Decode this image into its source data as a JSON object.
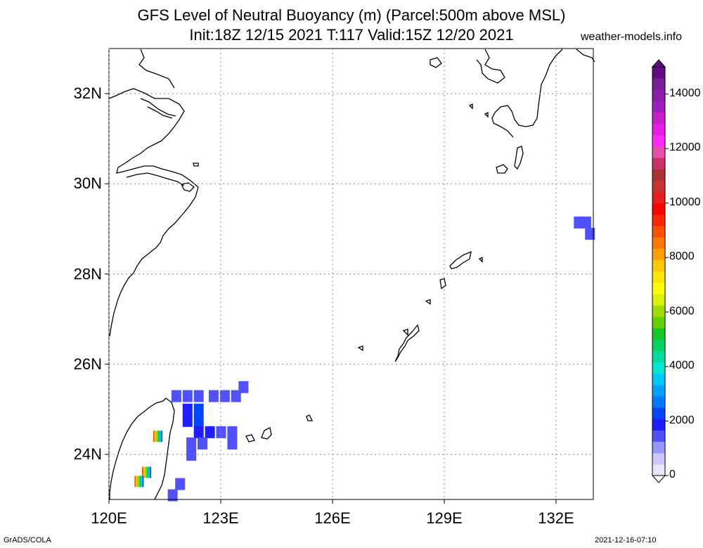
{
  "header": {
    "title_line1": "GFS Level of Neutral Buoyancy (m) (Parcel:500m above MSL)",
    "title_line2": "Init:18Z 12/15 2021 T:117 Valid:15Z 12/20 2021",
    "site": "weather-models.info"
  },
  "map": {
    "lon_range": [
      120,
      133
    ],
    "lat_range": [
      23,
      33
    ],
    "lat_labels": [
      "32N",
      "30N",
      "28N",
      "26N",
      "24N"
    ],
    "lon_labels": [
      "120E",
      "123E",
      "126E",
      "129E",
      "132E"
    ],
    "grid_style": "dotted",
    "coastline_color": "#000000",
    "field_cells": [
      {
        "lon": 121.8,
        "lat": 25.3,
        "value": 1500
      },
      {
        "lon": 122.1,
        "lat": 25.3,
        "value": 1600
      },
      {
        "lon": 122.4,
        "lat": 25.3,
        "value": 1500
      },
      {
        "lon": 122.8,
        "lat": 25.3,
        "value": 1500
      },
      {
        "lon": 123.1,
        "lat": 25.3,
        "value": 1500
      },
      {
        "lon": 123.4,
        "lat": 25.3,
        "value": 1400
      },
      {
        "lon": 123.6,
        "lat": 25.5,
        "value": 1400
      },
      {
        "lon": 122.1,
        "lat": 25.0,
        "value": 1800
      },
      {
        "lon": 122.4,
        "lat": 25.0,
        "value": 2200
      },
      {
        "lon": 122.1,
        "lat": 24.75,
        "value": 1900
      },
      {
        "lon": 122.4,
        "lat": 24.75,
        "value": 2300
      },
      {
        "lon": 122.4,
        "lat": 24.5,
        "value": 2000
      },
      {
        "lon": 122.7,
        "lat": 24.5,
        "value": 1700
      },
      {
        "lon": 123.0,
        "lat": 24.5,
        "value": 1500
      },
      {
        "lon": 123.3,
        "lat": 24.5,
        "value": 1400
      },
      {
        "lon": 122.2,
        "lat": 24.25,
        "value": 1400
      },
      {
        "lon": 122.5,
        "lat": 24.25,
        "value": 1500
      },
      {
        "lon": 123.3,
        "lat": 24.25,
        "value": 1400
      },
      {
        "lon": 122.2,
        "lat": 24.0,
        "value": 1400
      },
      {
        "lon": 121.9,
        "lat": 23.35,
        "value": 1400
      },
      {
        "lon": 121.7,
        "lat": 23.1,
        "value": 1400
      },
      {
        "lon": 132.6,
        "lat": 29.15,
        "value": 1500
      },
      {
        "lon": 132.8,
        "lat": 29.15,
        "value": 1500
      },
      {
        "lon": 132.9,
        "lat": 28.9,
        "value": 1500
      }
    ],
    "spot_cells": [
      {
        "lon": 121.3,
        "lat": 24.4
      },
      {
        "lon": 121.0,
        "lat": 23.6
      },
      {
        "lon": 120.8,
        "lat": 23.4
      }
    ]
  },
  "colorbar": {
    "min": 0,
    "max": 15000,
    "labels": [
      "14000",
      "12000",
      "10000",
      "8000",
      "6000",
      "4000",
      "2000",
      "0"
    ],
    "colors": [
      "#e6e6ff",
      "#c8c8ff",
      "#9696ff",
      "#5050ff",
      "#1e1eff",
      "#0046ff",
      "#0078ff",
      "#00a0ff",
      "#00c8ff",
      "#00e6d2",
      "#00dca0",
      "#00d264",
      "#14c828",
      "#64d200",
      "#a0dc00",
      "#dcf000",
      "#ffff00",
      "#ffe600",
      "#ffc800",
      "#ffa000",
      "#ff7800",
      "#ff5000",
      "#ff2800",
      "#ff0000",
      "#e61e1e",
      "#c83232",
      "#aa3232",
      "#c83264",
      "#e650aa",
      "#ff28ff",
      "#e61ee6",
      "#c81ec8",
      "#a01ebe",
      "#8c1eaa",
      "#781e96",
      "#640a82"
    ]
  },
  "footer": {
    "left": "GrADS/COLA",
    "right": "2021-12-16-07:10"
  }
}
